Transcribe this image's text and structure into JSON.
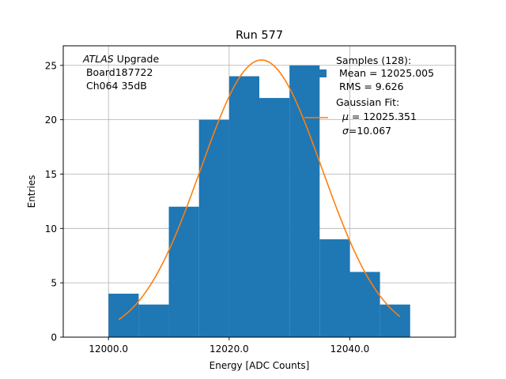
{
  "chart_data": {
    "type": "bar",
    "title": "Run 577",
    "xlabel": "Energy [ADC Counts]",
    "ylabel": "Entries",
    "xlim": [
      11992.5,
      12057.5
    ],
    "ylim": [
      0,
      26.8
    ],
    "xticks": [
      12000,
      12020,
      12040
    ],
    "xtick_labels": [
      "12000.0",
      "12020.0",
      "12040.0"
    ],
    "yticks": [
      0,
      5,
      10,
      15,
      20,
      25
    ],
    "ytick_labels": [
      "0",
      "5",
      "10",
      "15",
      "20",
      "25"
    ],
    "grid": true,
    "histogram": {
      "bin_edges": [
        12000,
        12005,
        12010,
        12015,
        12020,
        12025,
        12030,
        12035,
        12040,
        12045,
        12050
      ],
      "counts": [
        4,
        3,
        12,
        20,
        24,
        22,
        25,
        9,
        6,
        3
      ],
      "color": "#1f77b4"
    },
    "fit": {
      "mu": 12025.351,
      "sigma": 10.067,
      "amplitude": 25.5,
      "x_range": [
        12001.7,
        12048.3
      ],
      "color": "#ff7f0e"
    },
    "annotation": {
      "experiment": "ATLAS",
      "experiment_suffix": " Upgrade",
      "board": " Board187722",
      "channel": " Ch064 35dB"
    },
    "legend": {
      "placement": "top-right",
      "samples_title": "Samples (128):",
      "samples_mean": " Mean = 12025.005",
      "samples_rms": " RMS = 9.626",
      "fit_title": "Gaussian Fit:",
      "fit_mu_symbol": "μ",
      "fit_mu_text": " = 12025.351",
      "fit_sigma_symbol": "σ",
      "fit_sigma_text": "=10.067"
    }
  }
}
